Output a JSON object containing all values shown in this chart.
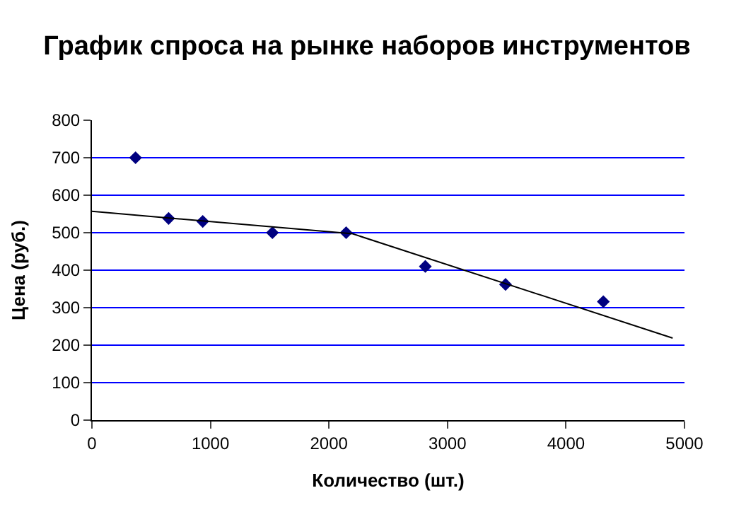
{
  "chart_data": {
    "type": "scatter",
    "title": "График спроса на рынке наборов инструментов",
    "xlabel": "Количество (шт.)",
    "ylabel": "Цена (руб.)",
    "xlim": [
      0,
      5000
    ],
    "xticks": [
      0,
      1000,
      2000,
      3000,
      4000,
      5000
    ],
    "ylim": [
      0,
      800
    ],
    "yticks": [
      0,
      100,
      200,
      300,
      400,
      500,
      600,
      700,
      800
    ],
    "grid": "y",
    "marker": "diamond",
    "series": [
      {
        "color": "#000080",
        "x": [
          368,
          647,
          935,
          1523,
          2145,
          2813,
          3490,
          4315
        ],
        "values": [
          700,
          538,
          530,
          500,
          500,
          410,
          362,
          316
        ]
      },
      {
        "type": "line",
        "color": "#000000",
        "marker": "none",
        "x": [
          0,
          2200,
          4900
        ],
        "values": [
          557,
          497,
          219
        ]
      }
    ]
  }
}
